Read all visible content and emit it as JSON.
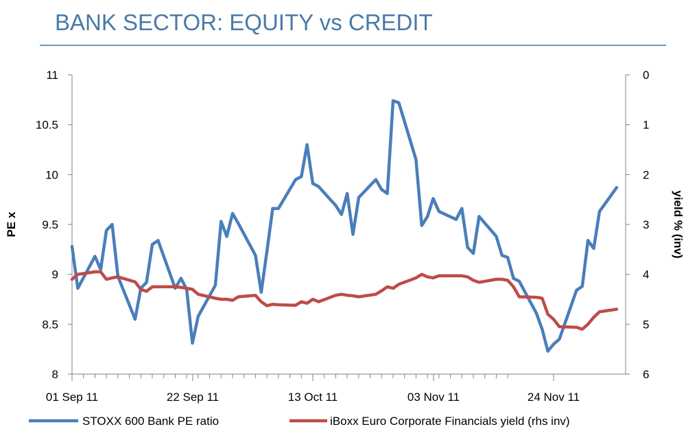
{
  "title": "BANK SECTOR: EQUITY vs CREDIT",
  "chart_data": {
    "type": "line",
    "ylabel": "PE x",
    "y2label": "yield % (inv)",
    "ylim": [
      8,
      11
    ],
    "yticks": [
      "8",
      "8.5",
      "9",
      "9.5",
      "10",
      "10.5",
      "11"
    ],
    "y2lim": [
      0,
      6
    ],
    "y2_inverted": true,
    "y2ticks": [
      "0",
      "1",
      "2",
      "3",
      "4",
      "5",
      "6"
    ],
    "xticks": [
      "01 Sep 11",
      "22 Sep 11",
      "13 Oct 11",
      "03 Nov 11",
      "24 Nov 11"
    ],
    "series": [
      {
        "name": "STOXX 600 Bank PE ratio",
        "axis": "left",
        "color": "#4a7ebb",
        "values": [
          [
            "2011-09-01",
            9.28
          ],
          [
            "2011-09-02",
            8.86
          ],
          [
            "2011-09-05",
            9.18
          ],
          [
            "2011-09-06",
            9.05
          ],
          [
            "2011-09-07",
            9.44
          ],
          [
            "2011-09-08",
            9.5
          ],
          [
            "2011-09-09",
            8.98
          ],
          [
            "2011-09-12",
            8.55
          ],
          [
            "2011-09-13",
            8.86
          ],
          [
            "2011-09-14",
            8.92
          ],
          [
            "2011-09-15",
            9.3
          ],
          [
            "2011-09-16",
            9.34
          ],
          [
            "2011-09-19",
            8.86
          ],
          [
            "2011-09-20",
            8.96
          ],
          [
            "2011-09-21",
            8.85
          ],
          [
            "2011-09-22",
            8.31
          ],
          [
            "2011-09-23",
            8.58
          ],
          [
            "2011-09-26",
            8.89
          ],
          [
            "2011-09-27",
            9.53
          ],
          [
            "2011-09-28",
            9.38
          ],
          [
            "2011-09-29",
            9.61
          ],
          [
            "2011-09-30",
            9.51
          ],
          [
            "2011-10-03",
            9.19
          ],
          [
            "2011-10-04",
            8.82
          ],
          [
            "2011-10-05",
            9.23
          ],
          [
            "2011-10-06",
            9.66
          ],
          [
            "2011-10-07",
            9.66
          ],
          [
            "2011-10-10",
            9.95
          ],
          [
            "2011-10-11",
            9.98
          ],
          [
            "2011-10-12",
            10.3
          ],
          [
            "2011-10-13",
            9.91
          ],
          [
            "2011-10-14",
            9.88
          ],
          [
            "2011-10-17",
            9.69
          ],
          [
            "2011-10-18",
            9.6
          ],
          [
            "2011-10-19",
            9.81
          ],
          [
            "2011-10-20",
            9.4
          ],
          [
            "2011-10-21",
            9.77
          ],
          [
            "2011-10-24",
            9.95
          ],
          [
            "2011-10-25",
            9.85
          ],
          [
            "2011-10-26",
            9.81
          ],
          [
            "2011-10-27",
            10.74
          ],
          [
            "2011-10-28",
            10.72
          ],
          [
            "2011-10-31",
            10.15
          ],
          [
            "2011-11-01",
            9.49
          ],
          [
            "2011-11-02",
            9.58
          ],
          [
            "2011-11-03",
            9.76
          ],
          [
            "2011-11-04",
            9.63
          ],
          [
            "2011-11-07",
            9.55
          ],
          [
            "2011-11-08",
            9.66
          ],
          [
            "2011-11-09",
            9.27
          ],
          [
            "2011-11-10",
            9.21
          ],
          [
            "2011-11-11",
            9.58
          ],
          [
            "2011-11-14",
            9.38
          ],
          [
            "2011-11-15",
            9.19
          ],
          [
            "2011-11-16",
            9.17
          ],
          [
            "2011-11-17",
            8.96
          ],
          [
            "2011-11-18",
            8.93
          ],
          [
            "2011-11-21",
            8.61
          ],
          [
            "2011-11-22",
            8.45
          ],
          [
            "2011-11-23",
            8.23
          ],
          [
            "2011-11-24",
            8.3
          ],
          [
            "2011-11-25",
            8.35
          ],
          [
            "2011-11-28",
            8.84
          ],
          [
            "2011-11-29",
            8.88
          ],
          [
            "2011-11-30",
            9.34
          ],
          [
            "2011-12-01",
            9.26
          ],
          [
            "2011-12-02",
            9.63
          ],
          [
            "2011-12-05",
            9.87
          ]
        ]
      },
      {
        "name": "iBoxx Euro Corporate Financials yield (rhs inv)",
        "axis": "right",
        "color": "#be4b48",
        "values": [
          [
            "2011-09-01",
            4.1
          ],
          [
            "2011-09-02",
            4.0
          ],
          [
            "2011-09-05",
            3.95
          ],
          [
            "2011-09-06",
            3.95
          ],
          [
            "2011-09-07",
            4.1
          ],
          [
            "2011-09-08",
            4.07
          ],
          [
            "2011-09-09",
            4.05
          ],
          [
            "2011-09-12",
            4.15
          ],
          [
            "2011-09-13",
            4.3
          ],
          [
            "2011-09-14",
            4.34
          ],
          [
            "2011-09-15",
            4.25
          ],
          [
            "2011-09-16",
            4.25
          ],
          [
            "2011-09-19",
            4.25
          ],
          [
            "2011-09-20",
            4.26
          ],
          [
            "2011-09-21",
            4.28
          ],
          [
            "2011-09-22",
            4.3
          ],
          [
            "2011-09-23",
            4.4
          ],
          [
            "2011-09-26",
            4.48
          ],
          [
            "2011-09-27",
            4.5
          ],
          [
            "2011-09-28",
            4.5
          ],
          [
            "2011-09-29",
            4.52
          ],
          [
            "2011-09-30",
            4.45
          ],
          [
            "2011-10-03",
            4.42
          ],
          [
            "2011-10-04",
            4.55
          ],
          [
            "2011-10-05",
            4.63
          ],
          [
            "2011-10-06",
            4.6
          ],
          [
            "2011-10-07",
            4.61
          ],
          [
            "2011-10-10",
            4.62
          ],
          [
            "2011-10-11",
            4.55
          ],
          [
            "2011-10-12",
            4.58
          ],
          [
            "2011-10-13",
            4.5
          ],
          [
            "2011-10-14",
            4.55
          ],
          [
            "2011-10-17",
            4.42
          ],
          [
            "2011-10-18",
            4.4
          ],
          [
            "2011-10-19",
            4.42
          ],
          [
            "2011-10-20",
            4.43
          ],
          [
            "2011-10-21",
            4.45
          ],
          [
            "2011-10-24",
            4.4
          ],
          [
            "2011-10-25",
            4.33
          ],
          [
            "2011-10-26",
            4.25
          ],
          [
            "2011-10-27",
            4.28
          ],
          [
            "2011-10-28",
            4.2
          ],
          [
            "2011-10-31",
            4.07
          ],
          [
            "2011-11-01",
            4.0
          ],
          [
            "2011-11-02",
            4.05
          ],
          [
            "2011-11-03",
            4.07
          ],
          [
            "2011-11-04",
            4.03
          ],
          [
            "2011-11-07",
            4.03
          ],
          [
            "2011-11-08",
            4.03
          ],
          [
            "2011-11-09",
            4.05
          ],
          [
            "2011-11-10",
            4.12
          ],
          [
            "2011-11-11",
            4.16
          ],
          [
            "2011-11-14",
            4.1
          ],
          [
            "2011-11-15",
            4.1
          ],
          [
            "2011-11-16",
            4.12
          ],
          [
            "2011-11-17",
            4.25
          ],
          [
            "2011-11-18",
            4.45
          ],
          [
            "2011-11-21",
            4.46
          ],
          [
            "2011-11-22",
            4.48
          ],
          [
            "2011-11-23",
            4.8
          ],
          [
            "2011-11-24",
            4.9
          ],
          [
            "2011-11-25",
            5.05
          ],
          [
            "2011-11-28",
            5.06
          ],
          [
            "2011-11-29",
            5.1
          ],
          [
            "2011-11-30",
            5.0
          ],
          [
            "2011-12-01",
            4.86
          ],
          [
            "2011-12-02",
            4.75
          ],
          [
            "2011-12-05",
            4.7
          ]
        ]
      }
    ]
  }
}
